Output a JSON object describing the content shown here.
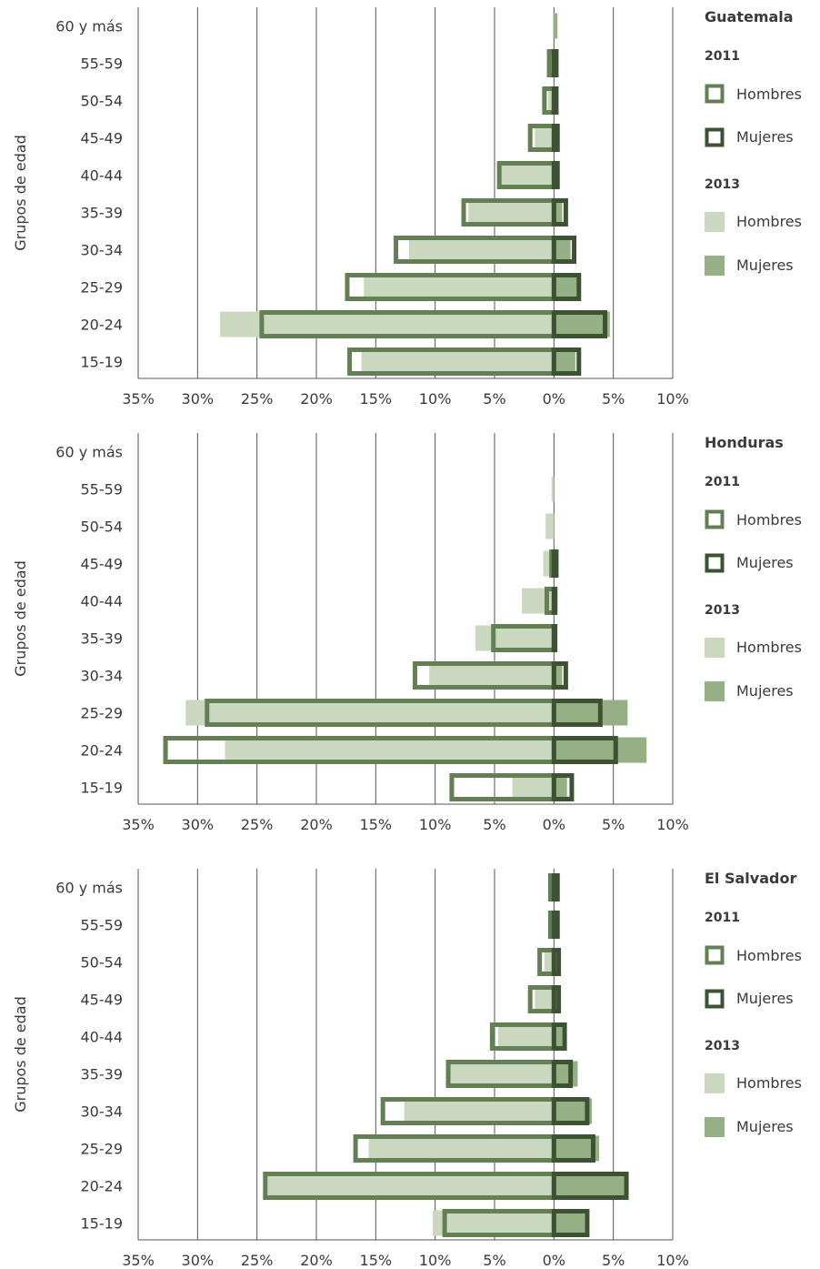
{
  "colors": {
    "hombres_2013": "#c9d8bf",
    "mujeres_2013": "#95b085",
    "hombres_2011": "#637f54",
    "mujeres_2011": "#3d5233",
    "grid": "#555555"
  },
  "chart_data": [
    {
      "type": "bar",
      "orientation": "horizontal-pyramid",
      "title": "Guatemala",
      "ylabel": "Grupos de edad",
      "categories": [
        "60 y más",
        "55-59",
        "50-54",
        "45-49",
        "40-44",
        "35-39",
        "30-34",
        "25-29",
        "20-24",
        "15-19"
      ],
      "xticks": [
        "35%",
        "30%",
        "25%",
        "20%",
        "15%",
        "10%",
        "5%",
        "0%",
        "5%",
        "10%"
      ],
      "xlim": [
        -35,
        10
      ],
      "legend": {
        "year_2011": "2011",
        "year_2013": "2013",
        "hombres_2011": "Hombres",
        "mujeres_2011": "Mujeres",
        "hombres_2013": "Hombres",
        "mujeres_2013": "Mujeres"
      },
      "series": [
        {
          "name": "Hombres 2013",
          "values": [
            0.1,
            0.3,
            0.5,
            1.6,
            4.8,
            7.2,
            12.2,
            16.0,
            28.1,
            16.2
          ]
        },
        {
          "name": "Mujeres 2013",
          "values": [
            0.3,
            0.2,
            0.2,
            0.2,
            0.3,
            0.7,
            1.4,
            2.0,
            4.7,
            1.8
          ]
        },
        {
          "name": "Hombres 2011",
          "values": [
            0.0,
            0.4,
            0.8,
            2.0,
            4.6,
            7.6,
            13.3,
            17.4,
            24.6,
            17.2
          ]
        },
        {
          "name": "Mujeres 2011",
          "values": [
            0.0,
            0.2,
            0.2,
            0.3,
            0.3,
            1.0,
            1.7,
            2.1,
            4.3,
            2.1
          ]
        }
      ]
    },
    {
      "type": "bar",
      "orientation": "horizontal-pyramid",
      "title": "Honduras",
      "ylabel": "Grupos de edad",
      "categories": [
        "60 y más",
        "55-59",
        "50-54",
        "45-49",
        "40-44",
        "35-39",
        "30-34",
        "25-29",
        "20-24",
        "15-19"
      ],
      "xticks": [
        "35%",
        "30%",
        "25%",
        "20%",
        "15%",
        "10%",
        "5%",
        "0%",
        "5%",
        "10%"
      ],
      "xlim": [
        -35,
        10
      ],
      "legend": {
        "year_2011": "2011",
        "year_2013": "2013",
        "hombres_2011": "Hombres",
        "mujeres_2011": "Mujeres",
        "hombres_2013": "Hombres",
        "mujeres_2013": "Mujeres"
      },
      "series": [
        {
          "name": "Hombres 2013",
          "values": [
            0.0,
            0.2,
            0.7,
            0.9,
            2.7,
            6.6,
            10.5,
            31.0,
            27.7,
            3.5
          ]
        },
        {
          "name": "Mujeres 2013",
          "values": [
            0.0,
            0.0,
            0.0,
            0.2,
            0.3,
            0.2,
            0.7,
            6.2,
            7.8,
            1.1
          ]
        },
        {
          "name": "Hombres 2011",
          "values": [
            0.0,
            0.0,
            0.0,
            0.2,
            0.6,
            5.1,
            11.7,
            29.2,
            32.7,
            8.6
          ]
        },
        {
          "name": "Mujeres 2011",
          "values": [
            0.0,
            0.0,
            0.0,
            0.2,
            0.1,
            0.1,
            1.0,
            3.9,
            5.2,
            1.5
          ]
        }
      ]
    },
    {
      "type": "bar",
      "orientation": "horizontal-pyramid",
      "title": "El Salvador",
      "ylabel": "Grupos de edad",
      "categories": [
        "60 y más",
        "55-59",
        "50-54",
        "45-49",
        "40-44",
        "35-39",
        "30-34",
        "25-29",
        "20-24",
        "15-19"
      ],
      "xticks": [
        "35%",
        "30%",
        "25%",
        "20%",
        "15%",
        "10%",
        "5%",
        "0%",
        "5%",
        "10%"
      ],
      "xlim": [
        -35,
        10
      ],
      "legend": {
        "year_2011": "2011",
        "year_2013": "2013",
        "hombres_2011": "Hombres",
        "mujeres_2011": "Mujeres",
        "hombres_2013": "Hombres",
        "mujeres_2013": "Mujeres"
      },
      "series": [
        {
          "name": "Hombres 2013",
          "values": [
            0.1,
            0.2,
            0.8,
            1.6,
            4.7,
            8.8,
            12.6,
            15.6,
            24.1,
            10.2
          ]
        },
        {
          "name": "Mujeres 2013",
          "values": [
            0.2,
            0.2,
            0.2,
            0.2,
            0.7,
            2.0,
            3.2,
            3.8,
            6.0,
            2.6
          ]
        },
        {
          "name": "Hombres 2011",
          "values": [
            0.3,
            0.3,
            1.2,
            2.0,
            5.2,
            8.9,
            14.4,
            16.7,
            24.3,
            9.2
          ]
        },
        {
          "name": "Mujeres 2011",
          "values": [
            0.3,
            0.3,
            0.4,
            0.4,
            0.9,
            1.4,
            2.8,
            3.3,
            6.1,
            2.8
          ]
        }
      ]
    }
  ]
}
